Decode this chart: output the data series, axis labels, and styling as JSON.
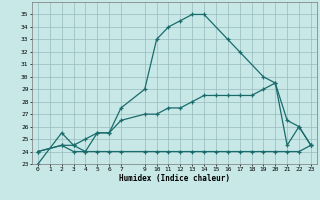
{
  "xlabel": "Humidex (Indice chaleur)",
  "bg_color": "#c8e8e8",
  "grid_color": "#99bbbb",
  "line_color": "#1a6b6b",
  "xlim": [
    -0.5,
    23.5
  ],
  "ylim": [
    23,
    36
  ],
  "xticks": [
    0,
    1,
    2,
    3,
    4,
    5,
    6,
    7,
    9,
    10,
    11,
    12,
    13,
    14,
    15,
    16,
    17,
    18,
    19,
    20,
    21,
    22,
    23
  ],
  "yticks": [
    23,
    24,
    25,
    26,
    27,
    28,
    29,
    30,
    31,
    32,
    33,
    34,
    35
  ],
  "curve1_x": [
    0,
    2,
    3,
    4,
    5,
    6,
    7,
    9,
    10,
    11,
    12,
    13,
    14,
    16,
    17,
    19,
    20,
    21,
    22,
    23
  ],
  "curve1_y": [
    23,
    25.5,
    24.5,
    24.0,
    25.5,
    25.5,
    27.5,
    29.0,
    33.0,
    34.0,
    34.5,
    35.0,
    35.0,
    33.0,
    32.0,
    30.0,
    29.5,
    26.5,
    26.0,
    24.5
  ],
  "curve2_x": [
    0,
    2,
    3,
    4,
    5,
    6,
    7,
    9,
    10,
    11,
    12,
    13,
    14,
    15,
    16,
    17,
    18,
    19,
    20,
    21,
    22,
    23
  ],
  "curve2_y": [
    24,
    24.5,
    24.0,
    24.0,
    24.0,
    24.0,
    24.0,
    24.0,
    24.0,
    24.0,
    24.0,
    24.0,
    24.0,
    24.0,
    24.0,
    24.0,
    24.0,
    24.0,
    24.0,
    24.0,
    24.0,
    24.5
  ],
  "curve3_x": [
    0,
    2,
    3,
    4,
    5,
    6,
    7,
    9,
    10,
    11,
    12,
    13,
    14,
    15,
    16,
    17,
    18,
    19,
    20,
    21,
    22,
    23
  ],
  "curve3_y": [
    24,
    24.5,
    24.5,
    25.0,
    25.5,
    25.5,
    26.5,
    27.0,
    27.0,
    27.5,
    27.5,
    28.0,
    28.5,
    28.5,
    28.5,
    28.5,
    28.5,
    29.0,
    29.5,
    24.5,
    26.0,
    24.5
  ]
}
